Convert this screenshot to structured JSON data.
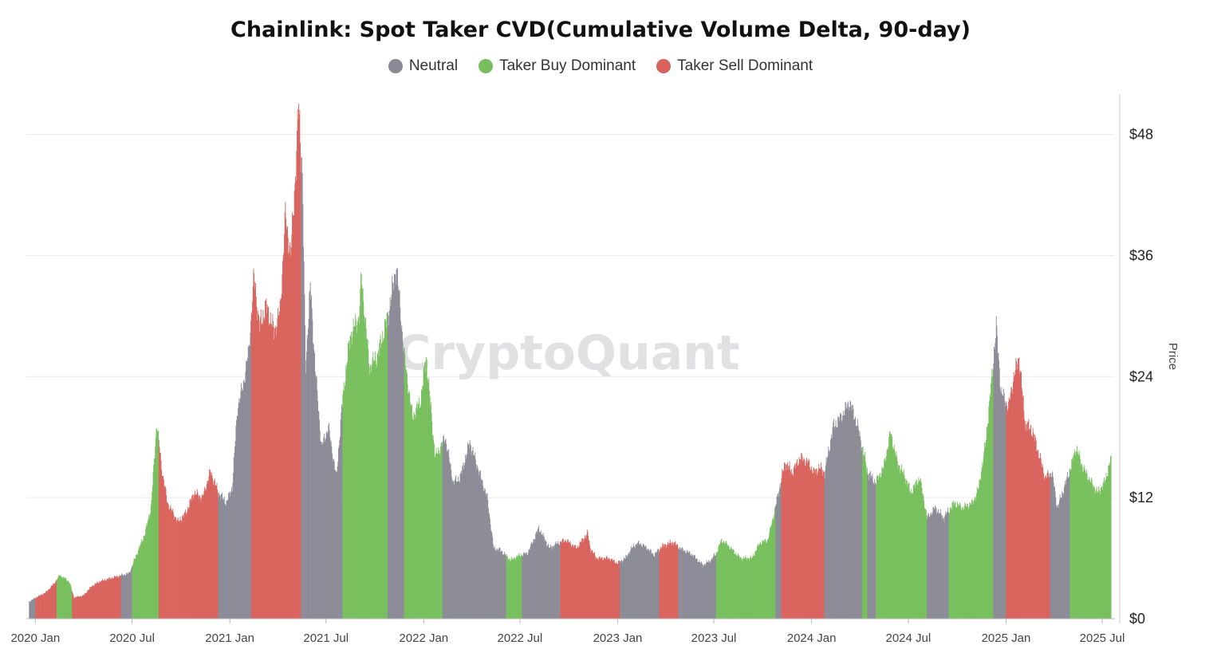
{
  "chart_data": {
    "type": "bar",
    "title": "Chainlink: Spot Taker CVD(Cumulative Volume Delta, 90-day)",
    "watermark": "CryptoQuant",
    "ylabel": "Price",
    "ylim": [
      0,
      52
    ],
    "yticks": [
      0,
      12,
      24,
      36,
      48
    ],
    "ytick_labels": [
      "$0",
      "$12",
      "$24",
      "$36",
      "$48"
    ],
    "x_range": [
      "2019-12-15",
      "2025-07-25"
    ],
    "xticks": [
      {
        "date": "2020-01-01",
        "label": "2020 Jan"
      },
      {
        "date": "2020-07-01",
        "label": "2020 Jul"
      },
      {
        "date": "2021-01-01",
        "label": "2021 Jan"
      },
      {
        "date": "2021-07-01",
        "label": "2021 Jul"
      },
      {
        "date": "2022-01-01",
        "label": "2022 Jan"
      },
      {
        "date": "2022-07-01",
        "label": "2022 Jul"
      },
      {
        "date": "2023-01-01",
        "label": "2023 Jan"
      },
      {
        "date": "2023-07-01",
        "label": "2023 Jul"
      },
      {
        "date": "2024-01-01",
        "label": "2024 Jan"
      },
      {
        "date": "2024-07-01",
        "label": "2024 Jul"
      },
      {
        "date": "2025-01-01",
        "label": "2025 Jan"
      },
      {
        "date": "2025-07-01",
        "label": "2025 Jul"
      }
    ],
    "legend": [
      {
        "key": "neutral",
        "label": "Neutral",
        "color": "#8b8a96"
      },
      {
        "key": "buy",
        "label": "Taker Buy Dominant",
        "color": "#76bf5c"
      },
      {
        "key": "sell",
        "label": "Taker Sell Dominant",
        "color": "#d9625c"
      }
    ],
    "price_points": [
      [
        "2019-12-20",
        1.7
      ],
      [
        "2020-01-05",
        2.2
      ],
      [
        "2020-01-20",
        2.6
      ],
      [
        "2020-02-05",
        3.5
      ],
      [
        "2020-02-15",
        4.3
      ],
      [
        "2020-02-25",
        4.0
      ],
      [
        "2020-03-05",
        3.6
      ],
      [
        "2020-03-13",
        2.1
      ],
      [
        "2020-03-31",
        2.3
      ],
      [
        "2020-04-15",
        3.2
      ],
      [
        "2020-05-01",
        3.7
      ],
      [
        "2020-05-20",
        4.0
      ],
      [
        "2020-06-10",
        4.3
      ],
      [
        "2020-06-25",
        4.5
      ],
      [
        "2020-07-10",
        6.5
      ],
      [
        "2020-07-25",
        8.5
      ],
      [
        "2020-08-05",
        11.0
      ],
      [
        "2020-08-16",
        19.5
      ],
      [
        "2020-08-25",
        15.0
      ],
      [
        "2020-09-05",
        11.5
      ],
      [
        "2020-09-25",
        9.6
      ],
      [
        "2020-10-10",
        10.5
      ],
      [
        "2020-10-25",
        12.5
      ],
      [
        "2020-11-10",
        12.0
      ],
      [
        "2020-11-25",
        14.6
      ],
      [
        "2020-12-10",
        12.5
      ],
      [
        "2020-12-25",
        11.5
      ],
      [
        "2021-01-05",
        13.0
      ],
      [
        "2021-01-15",
        21.0
      ],
      [
        "2021-01-25",
        23.0
      ],
      [
        "2021-02-05",
        26.5
      ],
      [
        "2021-02-15",
        34.0
      ],
      [
        "2021-02-25",
        29.0
      ],
      [
        "2021-03-10",
        31.0
      ],
      [
        "2021-03-25",
        28.5
      ],
      [
        "2021-04-05",
        30.5
      ],
      [
        "2021-04-15",
        40.0
      ],
      [
        "2021-04-25",
        36.0
      ],
      [
        "2021-05-05",
        45.0
      ],
      [
        "2021-05-10",
        51.0
      ],
      [
        "2021-05-17",
        44.0
      ],
      [
        "2021-05-23",
        25.0
      ],
      [
        "2021-06-01",
        33.0
      ],
      [
        "2021-06-10",
        25.0
      ],
      [
        "2021-06-22",
        17.0
      ],
      [
        "2021-07-05",
        19.0
      ],
      [
        "2021-07-20",
        14.0
      ],
      [
        "2021-08-01",
        22.0
      ],
      [
        "2021-08-15",
        28.0
      ],
      [
        "2021-09-01",
        30.0
      ],
      [
        "2021-09-05",
        34.0
      ],
      [
        "2021-09-20",
        25.0
      ],
      [
        "2021-10-05",
        26.0
      ],
      [
        "2021-10-25",
        30.0
      ],
      [
        "2021-11-10",
        35.0
      ],
      [
        "2021-11-25",
        26.0
      ],
      [
        "2021-12-10",
        20.0
      ],
      [
        "2021-12-25",
        21.5
      ],
      [
        "2022-01-05",
        26.0
      ],
      [
        "2022-01-22",
        16.0
      ],
      [
        "2022-02-10",
        18.0
      ],
      [
        "2022-02-25",
        13.5
      ],
      [
        "2022-03-10",
        14.0
      ],
      [
        "2022-03-28",
        17.5
      ],
      [
        "2022-04-15",
        14.5
      ],
      [
        "2022-04-30",
        12.0
      ],
      [
        "2022-05-12",
        7.0
      ],
      [
        "2022-05-25",
        6.8
      ],
      [
        "2022-06-13",
        5.8
      ],
      [
        "2022-06-30",
        6.3
      ],
      [
        "2022-07-15",
        6.5
      ],
      [
        "2022-08-05",
        9.0
      ],
      [
        "2022-08-25",
        7.0
      ],
      [
        "2022-09-10",
        7.5
      ],
      [
        "2022-09-25",
        7.8
      ],
      [
        "2022-10-15",
        7.0
      ],
      [
        "2022-11-05",
        8.5
      ],
      [
        "2022-11-10",
        7.0
      ],
      [
        "2022-11-22",
        6.0
      ],
      [
        "2022-12-15",
        6.0
      ],
      [
        "2022-12-31",
        5.5
      ],
      [
        "2023-01-15",
        6.0
      ],
      [
        "2023-01-30",
        7.2
      ],
      [
        "2023-02-10",
        7.5
      ],
      [
        "2023-02-25",
        7.0
      ],
      [
        "2023-03-10",
        6.3
      ],
      [
        "2023-03-25",
        7.2
      ],
      [
        "2023-04-15",
        7.6
      ],
      [
        "2023-04-30",
        6.9
      ],
      [
        "2023-05-20",
        6.4
      ],
      [
        "2023-06-10",
        5.3
      ],
      [
        "2023-06-25",
        5.8
      ],
      [
        "2023-07-05",
        6.5
      ],
      [
        "2023-07-15",
        7.8
      ],
      [
        "2023-07-25",
        7.4
      ],
      [
        "2023-08-10",
        6.5
      ],
      [
        "2023-08-20",
        6.0
      ],
      [
        "2023-09-10",
        6.0
      ],
      [
        "2023-09-25",
        7.5
      ],
      [
        "2023-10-10",
        7.8
      ],
      [
        "2023-10-22",
        10.5
      ],
      [
        "2023-11-05",
        14.0
      ],
      [
        "2023-11-12",
        15.5
      ],
      [
        "2023-11-25",
        14.5
      ],
      [
        "2023-12-10",
        16.0
      ],
      [
        "2023-12-25",
        15.5
      ],
      [
        "2024-01-05",
        14.5
      ],
      [
        "2024-01-15",
        15.0
      ],
      [
        "2024-01-25",
        14.5
      ],
      [
        "2024-02-10",
        19.0
      ],
      [
        "2024-02-25",
        20.0
      ],
      [
        "2024-03-12",
        21.5
      ],
      [
        "2024-03-25",
        19.5
      ],
      [
        "2024-04-05",
        17.0
      ],
      [
        "2024-04-15",
        14.5
      ],
      [
        "2024-04-30",
        13.5
      ],
      [
        "2024-05-15",
        15.0
      ],
      [
        "2024-05-28",
        18.5
      ],
      [
        "2024-06-10",
        15.5
      ],
      [
        "2024-06-25",
        14.0
      ],
      [
        "2024-07-05",
        12.5
      ],
      [
        "2024-07-22",
        14.0
      ],
      [
        "2024-08-05",
        10.0
      ],
      [
        "2024-08-20",
        11.0
      ],
      [
        "2024-09-05",
        10.0
      ],
      [
        "2024-09-25",
        11.5
      ],
      [
        "2024-10-10",
        11.0
      ],
      [
        "2024-10-30",
        11.5
      ],
      [
        "2024-11-10",
        13.0
      ],
      [
        "2024-11-22",
        17.0
      ],
      [
        "2024-12-05",
        24.0
      ],
      [
        "2024-12-13",
        29.0
      ],
      [
        "2024-12-22",
        22.5
      ],
      [
        "2025-01-05",
        21.0
      ],
      [
        "2025-01-15",
        24.0
      ],
      [
        "2025-01-25",
        26.0
      ],
      [
        "2025-02-05",
        19.5
      ],
      [
        "2025-02-20",
        18.5
      ],
      [
        "2025-03-05",
        16.0
      ],
      [
        "2025-03-15",
        14.0
      ],
      [
        "2025-03-28",
        14.5
      ],
      [
        "2025-04-07",
        11.0
      ],
      [
        "2025-04-20",
        13.0
      ],
      [
        "2025-05-05",
        15.5
      ],
      [
        "2025-05-12",
        17.0
      ],
      [
        "2025-05-25",
        15.0
      ],
      [
        "2025-06-10",
        13.5
      ],
      [
        "2025-06-22",
        12.5
      ],
      [
        "2025-07-05",
        13.5
      ],
      [
        "2025-07-15",
        15.5
      ],
      [
        "2025-07-18",
        16.0
      ]
    ],
    "segments": [
      {
        "start": "2019-12-15",
        "end": "2020-01-01",
        "class": "neutral"
      },
      {
        "start": "2020-01-01",
        "end": "2020-02-10",
        "class": "sell"
      },
      {
        "start": "2020-02-10",
        "end": "2020-03-10",
        "class": "buy"
      },
      {
        "start": "2020-03-10",
        "end": "2020-06-10",
        "class": "sell"
      },
      {
        "start": "2020-06-10",
        "end": "2020-07-01",
        "class": "neutral"
      },
      {
        "start": "2020-07-01",
        "end": "2020-08-20",
        "class": "buy"
      },
      {
        "start": "2020-08-20",
        "end": "2020-12-10",
        "class": "sell"
      },
      {
        "start": "2020-12-10",
        "end": "2021-02-10",
        "class": "neutral"
      },
      {
        "start": "2021-02-10",
        "end": "2021-05-15",
        "class": "sell"
      },
      {
        "start": "2021-05-15",
        "end": "2021-08-01",
        "class": "neutral"
      },
      {
        "start": "2021-08-01",
        "end": "2021-10-25",
        "class": "buy"
      },
      {
        "start": "2021-10-25",
        "end": "2021-11-25",
        "class": "neutral"
      },
      {
        "start": "2021-11-25",
        "end": "2022-02-05",
        "class": "buy"
      },
      {
        "start": "2022-02-05",
        "end": "2022-06-05",
        "class": "neutral"
      },
      {
        "start": "2022-06-05",
        "end": "2022-07-05",
        "class": "buy"
      },
      {
        "start": "2022-07-05",
        "end": "2022-09-15",
        "class": "neutral"
      },
      {
        "start": "2022-09-15",
        "end": "2023-01-05",
        "class": "sell"
      },
      {
        "start": "2023-01-05",
        "end": "2023-03-20",
        "class": "neutral"
      },
      {
        "start": "2023-03-20",
        "end": "2023-04-25",
        "class": "sell"
      },
      {
        "start": "2023-04-25",
        "end": "2023-07-05",
        "class": "neutral"
      },
      {
        "start": "2023-07-05",
        "end": "2023-10-25",
        "class": "buy"
      },
      {
        "start": "2023-10-25",
        "end": "2023-11-05",
        "class": "neutral"
      },
      {
        "start": "2023-11-05",
        "end": "2024-01-25",
        "class": "sell"
      },
      {
        "start": "2024-01-25",
        "end": "2024-04-05",
        "class": "neutral"
      },
      {
        "start": "2024-04-05",
        "end": "2024-04-15",
        "class": "buy"
      },
      {
        "start": "2024-04-15",
        "end": "2024-05-01",
        "class": "neutral"
      },
      {
        "start": "2024-05-01",
        "end": "2024-08-05",
        "class": "buy"
      },
      {
        "start": "2024-08-05",
        "end": "2024-09-15",
        "class": "neutral"
      },
      {
        "start": "2024-09-15",
        "end": "2024-12-08",
        "class": "buy"
      },
      {
        "start": "2024-12-08",
        "end": "2025-01-01",
        "class": "neutral"
      },
      {
        "start": "2025-01-01",
        "end": "2025-03-25",
        "class": "sell"
      },
      {
        "start": "2025-03-25",
        "end": "2025-05-01",
        "class": "neutral"
      },
      {
        "start": "2025-05-01",
        "end": "2025-07-18",
        "class": "buy"
      }
    ]
  }
}
